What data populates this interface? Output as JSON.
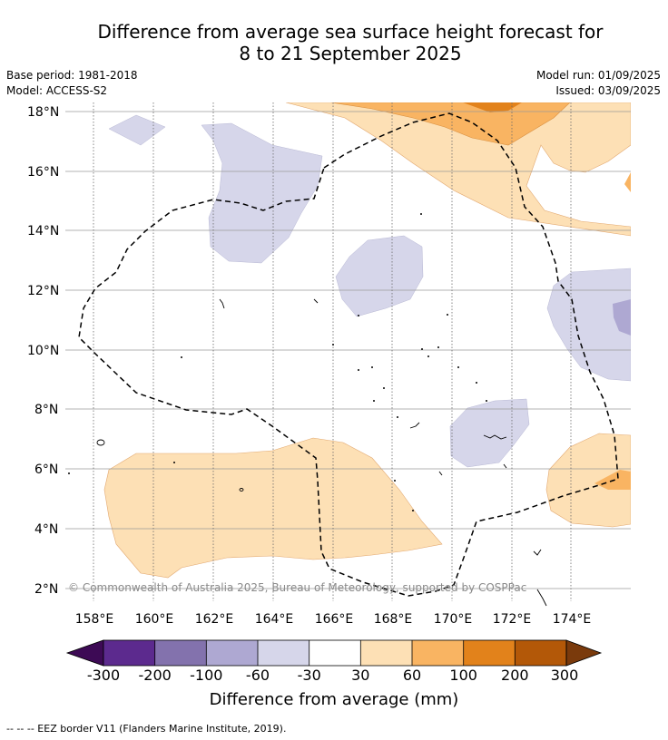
{
  "title_line1": "Difference from average sea surface height forecast for",
  "title_line2": "8 to 21 September 2025",
  "base_period": "Base period: 1981-2018",
  "model": "Model: ACCESS-S2",
  "model_run": "Model run: 01/09/2025",
  "issued": "Issued: 03/09/2025",
  "map": {
    "lat_labels": [
      "18°N",
      "16°N",
      "14°N",
      "12°N",
      "10°N",
      "8°N",
      "6°N",
      "4°N",
      "2°N"
    ],
    "lon_labels": [
      "158°E",
      "160°E",
      "162°E",
      "164°E",
      "166°E",
      "168°E",
      "170°E",
      "172°E",
      "174°E"
    ],
    "copyright": "© Commonwealth of Australia 2025, Bureau of Meteorology, supported by COSPPac"
  },
  "colorbar": {
    "title": "Difference from average (mm)",
    "ticks": [
      "-300",
      "-200",
      "-100",
      "-60",
      "-30",
      "30",
      "60",
      "100",
      "200",
      "300"
    ],
    "colors": [
      "#3d0a55",
      "#5c2a8e",
      "#8372ad",
      "#aea8d2",
      "#d6d6ea",
      "#ffffff",
      "#fde0b5",
      "#f9b462",
      "#e2821b",
      "#b35808",
      "#7a3a0c"
    ]
  },
  "legend_note": "-- -- -- EEZ border V11 (Flanders Marine Institute, 2019)."
}
